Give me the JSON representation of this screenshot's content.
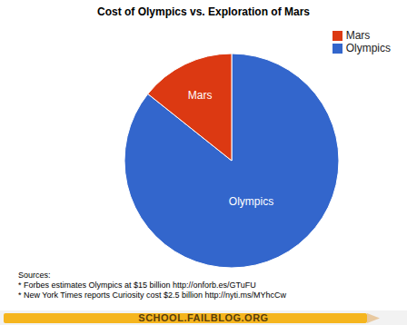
{
  "chart_data": {
    "type": "pie",
    "title": "Cost of Olympics vs. Exploration of Mars",
    "categories": [
      "Olympics",
      "Mars"
    ],
    "values": [
      15,
      2.5
    ],
    "colors": [
      "#3366cc",
      "#dc3912"
    ],
    "legend": "top-right",
    "sources_heading": "Sources:",
    "notes": [
      "* Forbes estimates Olympics at $15 billion http://onforb.es/GTuFU",
      "* New York Times reports Curiosity cost $2.5 billion http://nyti.ms/MYhcCw"
    ],
    "footer": "SCHOOL.FAILBLOG.ORG"
  }
}
